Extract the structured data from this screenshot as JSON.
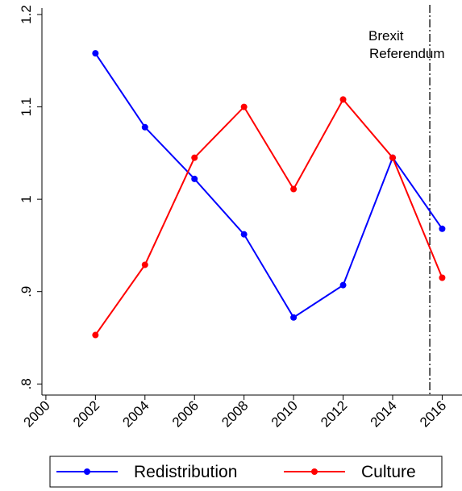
{
  "chart_data": {
    "type": "line",
    "x": [
      2002,
      2004,
      2006,
      2008,
      2010,
      2012,
      2014,
      2016
    ],
    "series": [
      {
        "name": "Redistribution",
        "color": "#0000ff",
        "values": [
          1.158,
          1.078,
          1.022,
          0.962,
          0.872,
          0.907,
          1.045,
          0.968
        ]
      },
      {
        "name": "Culture",
        "color": "#ff0000",
        "values": [
          0.853,
          0.929,
          1.045,
          1.1,
          1.011,
          1.108,
          1.045,
          0.915
        ]
      }
    ],
    "xlim": [
      1999.84,
      2016.8
    ],
    "xticks": [
      2000,
      2002,
      2004,
      2006,
      2008,
      2010,
      2012,
      2014,
      2016
    ],
    "ylim": [
      0.788,
      1.207
    ],
    "yticks": [
      {
        "value": 0.8,
        "label": ".8"
      },
      {
        "value": 0.9,
        "label": ".9"
      },
      1,
      1.1,
      1.2
    ],
    "vline": {
      "x": 2015.5,
      "label": [
        "Brexit",
        "Referendum"
      ]
    },
    "legend": "bottom"
  }
}
